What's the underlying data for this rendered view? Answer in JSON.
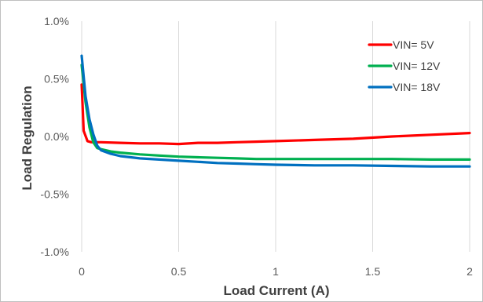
{
  "chart_data": {
    "type": "line",
    "xlabel": "Load Current (A)",
    "ylabel": "Load Regulation",
    "xlim": [
      0,
      2
    ],
    "ylim": [
      -1.0,
      1.0
    ],
    "x_ticks": [
      "0",
      "0.5",
      "1",
      "1.5",
      "2"
    ],
    "y_ticks": [
      "-1.0%",
      "-0.5%",
      "0.0%",
      "0.5%",
      "1.0%"
    ],
    "x_tick_values": [
      0,
      0.5,
      1,
      1.5,
      2
    ],
    "y_tick_values": [
      -1.0,
      -0.5,
      0.0,
      0.5,
      1.0
    ],
    "grid": "vertical",
    "legend_position": "top-right",
    "series": [
      {
        "name": "VIN= 5V",
        "color": "#ff0000",
        "x": [
          0,
          0.01,
          0.03,
          0.05,
          0.1,
          0.2,
          0.3,
          0.4,
          0.5,
          0.6,
          0.7,
          0.8,
          0.9,
          1.0,
          1.2,
          1.4,
          1.6,
          1.8,
          2.0
        ],
        "y": [
          0.45,
          0.05,
          -0.04,
          -0.05,
          -0.05,
          -0.055,
          -0.06,
          -0.06,
          -0.065,
          -0.055,
          -0.055,
          -0.05,
          -0.045,
          -0.04,
          -0.03,
          -0.02,
          0.0,
          0.015,
          0.03
        ]
      },
      {
        "name": "VIN= 12V",
        "color": "#00b050",
        "x": [
          0,
          0.02,
          0.04,
          0.06,
          0.08,
          0.1,
          0.15,
          0.2,
          0.3,
          0.4,
          0.5,
          0.6,
          0.7,
          0.8,
          0.9,
          1.0,
          1.2,
          1.4,
          1.6,
          1.8,
          2.0
        ],
        "y": [
          0.62,
          0.3,
          0.08,
          -0.05,
          -0.1,
          -0.11,
          -0.13,
          -0.14,
          -0.155,
          -0.165,
          -0.175,
          -0.18,
          -0.185,
          -0.19,
          -0.195,
          -0.195,
          -0.195,
          -0.195,
          -0.195,
          -0.2,
          -0.2
        ]
      },
      {
        "name": "VIN= 18V",
        "color": "#0070c0",
        "x": [
          0,
          0.02,
          0.04,
          0.06,
          0.08,
          0.1,
          0.15,
          0.2,
          0.3,
          0.4,
          0.5,
          0.6,
          0.7,
          0.8,
          0.9,
          1.0,
          1.2,
          1.4,
          1.6,
          1.8,
          2.0
        ],
        "y": [
          0.7,
          0.35,
          0.15,
          0.02,
          -0.08,
          -0.12,
          -0.15,
          -0.17,
          -0.19,
          -0.2,
          -0.21,
          -0.22,
          -0.23,
          -0.235,
          -0.24,
          -0.245,
          -0.25,
          -0.25,
          -0.255,
          -0.26,
          -0.26
        ]
      }
    ]
  }
}
